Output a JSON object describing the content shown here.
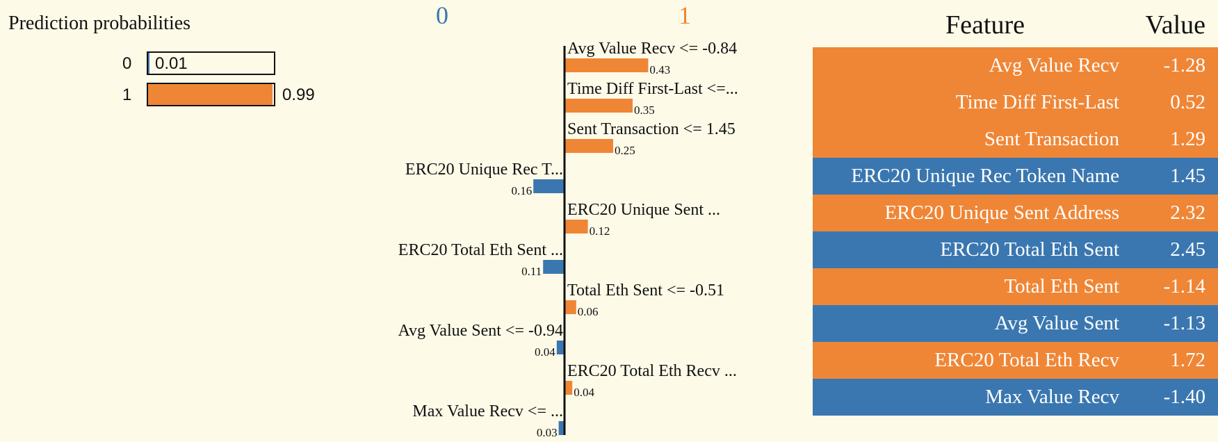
{
  "prediction_probabilities": {
    "title": "Prediction probabilities",
    "rows": [
      {
        "class": "0",
        "label": "0.01",
        "value": 0.01
      },
      {
        "class": "1",
        "label": "0.99",
        "value": 0.99
      }
    ]
  },
  "colors": {
    "class0": "#3a77b0",
    "class1": "#ef8636",
    "background": "#fefae8"
  },
  "chart_data": {
    "type": "bar",
    "orientation": "horizontal",
    "class_labels": [
      "0",
      "1"
    ],
    "bars": [
      {
        "label": "Avg Value Recv <= -0.84",
        "value": 0.43,
        "class": "1"
      },
      {
        "label": "Time Diff First-Last <=...",
        "value": 0.35,
        "class": "1"
      },
      {
        "label": "Sent Transaction <= 1.45",
        "value": 0.25,
        "class": "1"
      },
      {
        "label": "ERC20 Unique Rec T...",
        "value": 0.16,
        "class": "0"
      },
      {
        "label": "ERC20 Unique Sent ...",
        "value": 0.12,
        "class": "1"
      },
      {
        "label": "ERC20 Total Eth Sent ...",
        "value": 0.11,
        "class": "0"
      },
      {
        "label": "Total Eth Sent <= -0.51",
        "value": 0.06,
        "class": "1"
      },
      {
        "label": "Avg Value Sent <= -0.94",
        "value": 0.04,
        "class": "0"
      },
      {
        "label": "ERC20 Total Eth Recv ...",
        "value": 0.04,
        "class": "1"
      },
      {
        "label": "Max Value Recv <= ...",
        "value": 0.03,
        "class": "0"
      }
    ]
  },
  "feature_table": {
    "headers": {
      "feature": "Feature",
      "value": "Value"
    },
    "rows": [
      {
        "feature": "Avg Value Recv",
        "value": "-1.28",
        "class": "1"
      },
      {
        "feature": "Time Diff First-Last",
        "value": "0.52",
        "class": "1"
      },
      {
        "feature": "Sent Transaction",
        "value": "1.29",
        "class": "1"
      },
      {
        "feature": "ERC20 Unique Rec Token Name",
        "value": "1.45",
        "class": "0"
      },
      {
        "feature": "ERC20 Unique Sent Address",
        "value": "2.32",
        "class": "1"
      },
      {
        "feature": "ERC20 Total Eth Sent",
        "value": "2.45",
        "class": "0"
      },
      {
        "feature": "Total Eth Sent",
        "value": "-1.14",
        "class": "1"
      },
      {
        "feature": "Avg Value Sent",
        "value": "-1.13",
        "class": "0"
      },
      {
        "feature": "ERC20 Total Eth Recv",
        "value": "1.72",
        "class": "1"
      },
      {
        "feature": "Max Value Recv",
        "value": "-1.40",
        "class": "0"
      }
    ]
  }
}
